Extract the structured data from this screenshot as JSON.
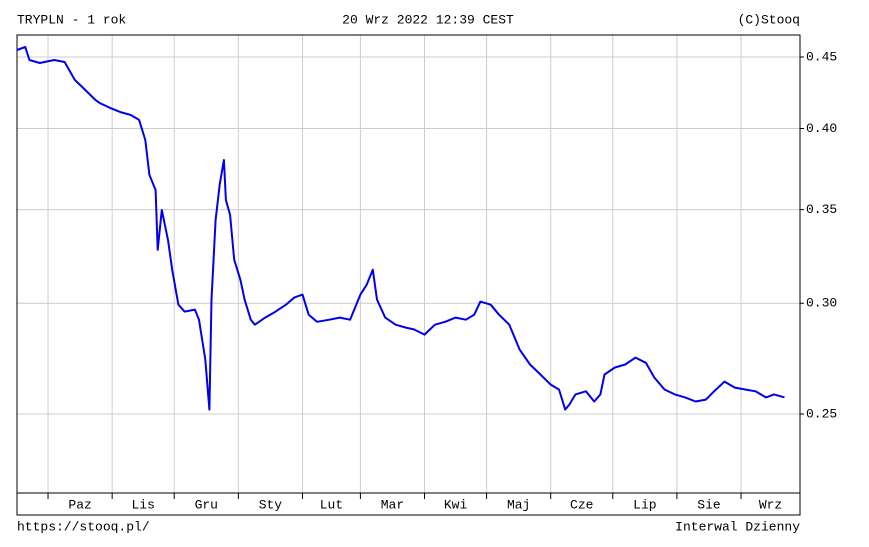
{
  "chart_data": {
    "type": "line",
    "title": "TRYPLN - 1 rok",
    "subtitle": "20 Wrz 2022 12:39 CEST",
    "credit": "(C)Stooq",
    "footer_left": "https://stooq.pl/",
    "footer_right": "Interwal Dzienny",
    "log_scale": true,
    "grid": true,
    "xlim": [
      -15,
      363.5
    ],
    "xticks": [
      0,
      31,
      61,
      92,
      123,
      151,
      182,
      212,
      243,
      273,
      304,
      335
    ],
    "x_labels": [
      "Paz",
      "Lis",
      "Gru",
      "Sty",
      "Lut",
      "Mar",
      "Kwi",
      "Maj",
      "Cze",
      "Lip",
      "Sie",
      "Wrz"
    ],
    "ylim": [
      0.2195,
      0.4666
    ],
    "yticks": [
      0.25,
      {
        "value": 0.3,
        "label": "0.30"
      },
      0.35,
      {
        "value": 0.4,
        "label": "0.40"
      },
      0.45
    ],
    "series": [
      {
        "color": "#0000ee",
        "x": [
          -15,
          -11,
          -9,
          -4,
          3,
          8,
          13,
          18,
          23,
          25,
          30,
          35,
          40,
          44,
          47,
          49,
          52,
          53,
          55,
          58,
          60,
          63,
          66,
          71,
          73,
          76,
          78,
          79,
          81,
          83,
          85,
          86,
          88,
          90,
          93,
          95,
          98,
          100,
          105,
          110,
          115,
          119,
          123,
          126,
          130,
          136,
          141,
          146,
          151,
          154,
          157,
          159,
          163,
          168,
          173,
          177,
          182,
          187,
          192,
          197,
          202,
          206,
          209,
          214,
          218,
          223,
          228,
          233,
          238,
          243,
          247,
          250,
          252,
          255,
          260,
          264,
          267,
          269,
          274,
          279,
          284,
          289,
          293,
          298,
          303,
          308,
          313,
          318,
          322,
          327,
          332,
          337,
          342,
          347,
          351,
          356
        ],
        "values": [
          0.4552,
          0.4575,
          0.4478,
          0.4456,
          0.4478,
          0.4463,
          0.4333,
          0.4262,
          0.4192,
          0.4172,
          0.4138,
          0.411,
          0.409,
          0.4057,
          0.3925,
          0.3706,
          0.3615,
          0.3276,
          0.3498,
          0.333,
          0.317,
          0.2993,
          0.2959,
          0.2969,
          0.292,
          0.2734,
          0.2518,
          0.3018,
          0.3441,
          0.3647,
          0.3798,
          0.3556,
          0.3469,
          0.3223,
          0.3118,
          0.3018,
          0.292,
          0.2896,
          0.293,
          0.2959,
          0.2993,
          0.3028,
          0.3043,
          0.2944,
          0.291,
          0.292,
          0.293,
          0.292,
          0.3043,
          0.3092,
          0.317,
          0.3018,
          0.293,
          0.2896,
          0.2882,
          0.2873,
          0.2849,
          0.2896,
          0.291,
          0.293,
          0.292,
          0.2944,
          0.3008,
          0.2993,
          0.2944,
          0.2896,
          0.2779,
          0.2712,
          0.2668,
          0.2624,
          0.2603,
          0.2518,
          0.2539,
          0.2582,
          0.2595,
          0.2552,
          0.2582,
          0.2668,
          0.2699,
          0.2712,
          0.2743,
          0.272,
          0.2655,
          0.2603,
          0.2582,
          0.2569,
          0.2552,
          0.256,
          0.2595,
          0.2637,
          0.2611,
          0.2603,
          0.2595,
          0.2569,
          0.2582,
          0.2569
        ]
      }
    ]
  }
}
